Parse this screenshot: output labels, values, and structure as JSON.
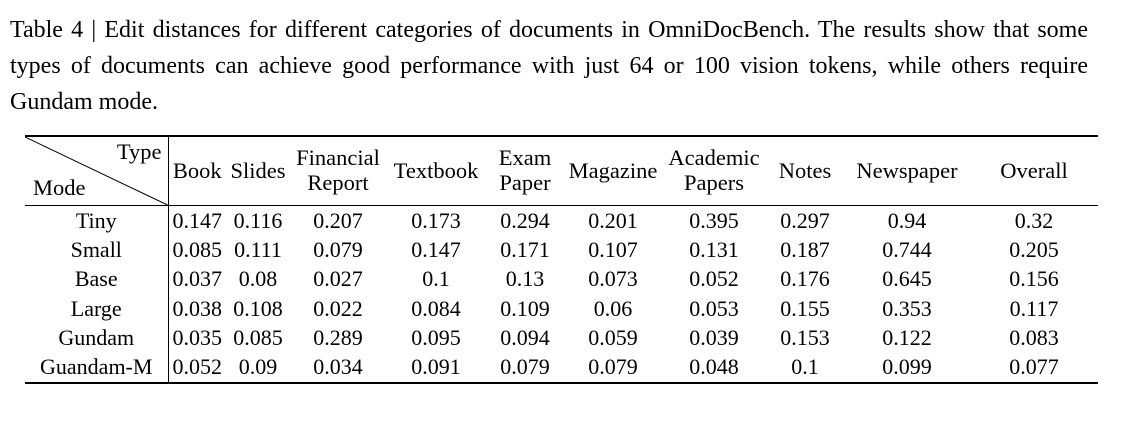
{
  "caption": {
    "text": "Table 4 | Edit distances for different categories of documents in OmniDocBench. The results show that some types of documents can achieve good performance with just 64 or 100 vision tokens, while others require Gundam mode."
  },
  "table": {
    "corner": {
      "top_right": "Type",
      "bottom_left": "Mode"
    },
    "columns": [
      "Book",
      "Slides",
      "Financial Report",
      "Textbook",
      "Exam Paper",
      "Magazine",
      "Academic Papers",
      "Notes",
      "Newspaper",
      "Overall"
    ],
    "rows": [
      {
        "mode": "Tiny",
        "values": [
          "0.147",
          "0.116",
          "0.207",
          "0.173",
          "0.294",
          "0.201",
          "0.395",
          "0.297",
          "0.94",
          "0.32"
        ]
      },
      {
        "mode": "Small",
        "values": [
          "0.085",
          "0.111",
          "0.079",
          "0.147",
          "0.171",
          "0.107",
          "0.131",
          "0.187",
          "0.744",
          "0.205"
        ]
      },
      {
        "mode": "Base",
        "values": [
          "0.037",
          "0.08",
          "0.027",
          "0.1",
          "0.13",
          "0.073",
          "0.052",
          "0.176",
          "0.645",
          "0.156"
        ]
      },
      {
        "mode": "Large",
        "values": [
          "0.038",
          "0.108",
          "0.022",
          "0.084",
          "0.109",
          "0.06",
          "0.053",
          "0.155",
          "0.353",
          "0.117"
        ]
      },
      {
        "mode": "Gundam",
        "values": [
          "0.035",
          "0.085",
          "0.289",
          "0.095",
          "0.094",
          "0.059",
          "0.039",
          "0.153",
          "0.122",
          "0.083"
        ]
      },
      {
        "mode": "Guandam-M",
        "values": [
          "0.052",
          "0.09",
          "0.034",
          "0.091",
          "0.079",
          "0.079",
          "0.048",
          "0.1",
          "0.099",
          "0.077"
        ]
      }
    ]
  }
}
